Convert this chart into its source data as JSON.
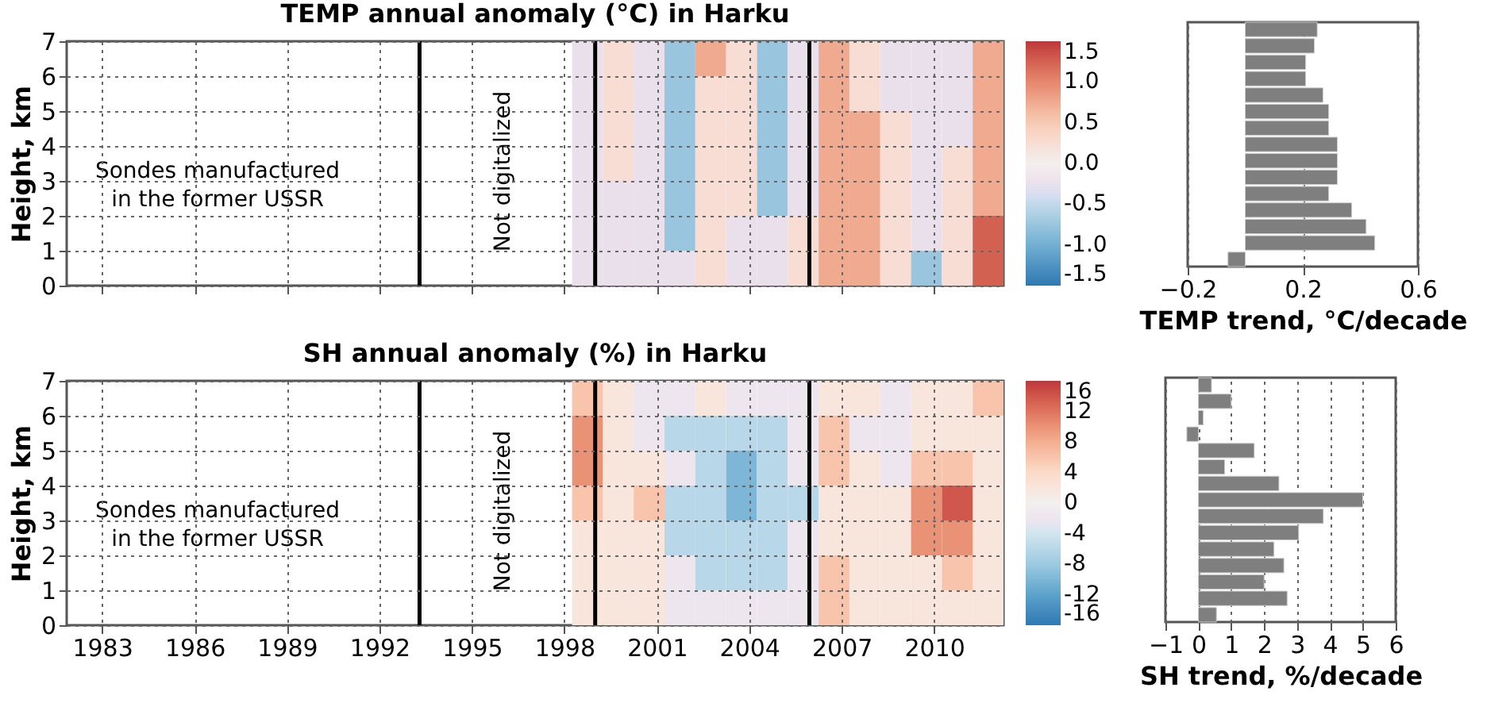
{
  "chart_data": [
    {
      "type": "heatmap",
      "title": "TEMP annual anomaly (°C) in Harku",
      "ylabel": "Height, km",
      "x": [
        1998.75,
        1999.75,
        2000.75,
        2001.75,
        2002.75,
        2003.75,
        2004.75,
        2005.75,
        2006.75,
        2007.75,
        2008.75,
        2009.75,
        2010.75,
        2011.75
      ],
      "xlim": [
        1981.85,
        2012.25
      ],
      "xticks": [
        1983,
        1986,
        1989,
        1992,
        1995,
        1998,
        2001,
        2004,
        2007,
        2010
      ],
      "ylim": [
        0,
        7
      ],
      "yticks": [
        0,
        1,
        2,
        3,
        4,
        5,
        6,
        7
      ],
      "tick_labels": "y",
      "grid": true,
      "cells": [
        [
          -0.25,
          0.25,
          -0.25,
          -0.75,
          0.75,
          0.25,
          -0.75,
          -0.25,
          0.75,
          0.25,
          -0.25,
          -0.25,
          -0.25,
          0.75
        ],
        [
          -0.25,
          0.25,
          -0.25,
          -0.75,
          0.25,
          0.25,
          -0.75,
          -0.25,
          0.75,
          0.25,
          -0.25,
          -0.25,
          -0.25,
          0.75
        ],
        [
          -0.25,
          0.25,
          -0.25,
          -0.75,
          0.25,
          0.25,
          -0.75,
          -0.25,
          0.75,
          0.75,
          0.25,
          -0.25,
          -0.25,
          0.75
        ],
        [
          -0.25,
          0.25,
          -0.25,
          -0.75,
          0.25,
          0.25,
          -0.75,
          -0.25,
          0.75,
          0.75,
          0.25,
          -0.25,
          0.25,
          0.75
        ],
        [
          -0.25,
          -0.25,
          -0.25,
          -0.75,
          0.25,
          0.25,
          -0.75,
          -0.25,
          0.75,
          0.75,
          0.25,
          -0.25,
          0.25,
          0.75
        ],
        [
          -0.25,
          -0.25,
          -0.25,
          -0.75,
          0.25,
          -0.25,
          -0.25,
          0.25,
          0.75,
          0.75,
          0.25,
          -0.25,
          0.25,
          1.25
        ],
        [
          -0.25,
          -0.25,
          -0.25,
          -0.25,
          0.25,
          -0.25,
          -0.25,
          0.25,
          0.75,
          0.75,
          0.25,
          -0.75,
          0.25,
          1.25
        ]
      ],
      "clim": [
        -1.5,
        1.5
      ],
      "cticks": [
        {
          "value": -1.5,
          "label": "-1.5"
        },
        {
          "value": -1,
          "label": "-1.0"
        },
        {
          "value": -0.5,
          "label": "-0.5"
        },
        {
          "value": 0,
          "label": "0.0"
        },
        {
          "value": 0.5,
          "label": "0.5"
        },
        {
          "value": 1,
          "label": "1.0"
        },
        {
          "value": 1.5,
          "label": "1.5"
        }
      ],
      "ref_lines": [
        {
          "axis": "x",
          "value": 1993.3,
          "color": "#000000"
        },
        {
          "axis": "x",
          "value": 1999.0,
          "color": "#000000"
        },
        {
          "axis": "x",
          "value": 2005.95,
          "color": "#000000"
        }
      ],
      "annotations": [
        "Sondes manufactured\nin the former USSR",
        "Not digitalized"
      ]
    },
    {
      "type": "bar",
      "orientation": "horizontal",
      "xlabel": "TEMP trend, °C/decade",
      "categories": [
        null,
        null,
        null,
        null,
        null,
        null,
        null,
        null,
        null,
        null,
        null,
        null,
        null,
        null,
        null
      ],
      "values": [
        0.25,
        0.24,
        0.21,
        0.21,
        0.27,
        0.29,
        0.29,
        0.32,
        0.32,
        0.32,
        0.29,
        0.37,
        0.42,
        0.45,
        -0.06
      ],
      "color": "#7f7f7f",
      "xlim": [
        -0.2,
        0.6
      ],
      "xticks": [
        {
          "value": -0.2,
          "label": "−0.2"
        },
        0.2,
        0.6
      ],
      "tick_labels": "x",
      "grid": "x"
    },
    {
      "type": "heatmap",
      "title": "SH annual anomaly (%) in Harku",
      "ylabel": "Height, km",
      "x": [
        1998.75,
        1999.75,
        2000.75,
        2001.75,
        2002.75,
        2003.75,
        2004.75,
        2005.75,
        2006.75,
        2007.75,
        2008.75,
        2009.75,
        2010.75,
        2011.75
      ],
      "xlim": [
        1981.85,
        2012.25
      ],
      "xticks": [
        1983,
        1986,
        1989,
        1992,
        1995,
        1998,
        2001,
        2004,
        2007,
        2010
      ],
      "ylim": [
        0,
        7
      ],
      "yticks": [
        0,
        1,
        2,
        3,
        4,
        5,
        6,
        7
      ],
      "grid": true,
      "cells": [
        [
          6,
          2,
          -2,
          -2,
          2,
          -2,
          -2,
          -2,
          2,
          2,
          -2,
          2,
          2,
          6
        ],
        [
          10,
          2,
          -2,
          -6,
          -6,
          -6,
          -6,
          -2,
          6,
          -2,
          -2,
          2,
          2,
          2
        ],
        [
          10,
          2,
          2,
          -2,
          -6,
          -10,
          -6,
          -2,
          6,
          2,
          -2,
          6,
          6,
          2
        ],
        [
          6,
          2,
          6,
          -6,
          -6,
          -10,
          -6,
          -6,
          2,
          2,
          2,
          10,
          14,
          2
        ],
        [
          2,
          2,
          2,
          -6,
          -6,
          -6,
          -6,
          -2,
          2,
          2,
          2,
          10,
          10,
          2
        ],
        [
          2,
          2,
          2,
          -2,
          -6,
          -6,
          -6,
          -2,
          6,
          2,
          2,
          2,
          6,
          2
        ],
        [
          2,
          2,
          2,
          -2,
          -2,
          -2,
          -2,
          -2,
          6,
          2,
          2,
          2,
          2,
          2
        ]
      ],
      "clim": [
        -16,
        16
      ],
      "cticks": [
        {
          "value": -16,
          "label": "-16"
        },
        {
          "value": -12,
          "label": "-12"
        },
        {
          "value": -8,
          "label": "-8"
        },
        {
          "value": -4,
          "label": "-4"
        },
        0,
        4,
        8,
        12,
        16
      ],
      "ref_lines": [
        {
          "axis": "x",
          "value": 1993.3,
          "color": "#000000"
        },
        {
          "axis": "x",
          "value": 1999.0,
          "color": "#000000"
        },
        {
          "axis": "x",
          "value": 2005.95,
          "color": "#000000"
        }
      ],
      "annotations": [
        "Sondes manufactured\nin the former USSR",
        "Not digitalized"
      ]
    },
    {
      "type": "bar",
      "orientation": "horizontal",
      "xlabel": "SH trend, %/decade",
      "categories": [
        null,
        null,
        null,
        null,
        null,
        null,
        null,
        null,
        null,
        null,
        null,
        null,
        null,
        null,
        null
      ],
      "values": [
        0.4,
        1.0,
        0.15,
        -0.35,
        1.7,
        0.8,
        2.45,
        5.0,
        3.8,
        3.05,
        2.3,
        2.6,
        2.0,
        2.7,
        0.55
      ],
      "color": "#7f7f7f",
      "xlim": [
        -1,
        6
      ],
      "xticks": [
        {
          "value": -1,
          "label": "−1"
        },
        0,
        1,
        2,
        3,
        4,
        5,
        6
      ],
      "tick_labels": "x",
      "grid": "x"
    }
  ]
}
